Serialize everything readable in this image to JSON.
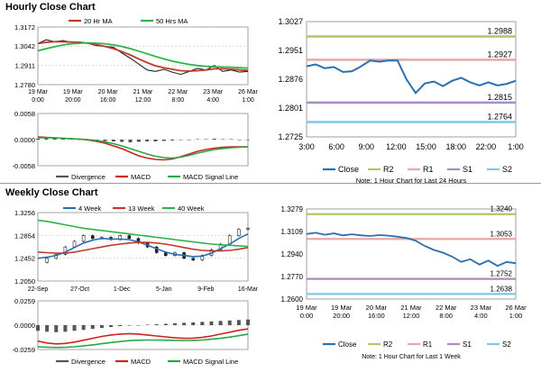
{
  "sections": {
    "hourly_title": "Hourly Close Chart",
    "weekly_title": "Weekly Close Chart"
  },
  "colors": {
    "ma_short": "#c0392b",
    "ma_long": "#2db34a",
    "price": "#222222",
    "close": "#2a6fb0",
    "r2": "#a9c96a",
    "r1": "#e8a7a7",
    "s1": "#a98cc7",
    "s2": "#7fc7e6",
    "macd": "#cc2222",
    "signal": "#22aa44",
    "divergence": "#555555",
    "grid": "#bbbbbb"
  },
  "legends": {
    "hourly_ma": [
      "20 Hr MA",
      "50 Hrs MA"
    ],
    "weekly_ma": [
      "4 Week",
      "13 Week",
      "40 Week"
    ],
    "macd": [
      "Divergence",
      "MACD",
      "MACD Signal Line"
    ],
    "macd_weekly": [
      "Divergence",
      "MACD",
      "MACD Signal Line"
    ],
    "levels": [
      "Close",
      "R2",
      "R1",
      "S1",
      "S2"
    ]
  },
  "notes": {
    "hourly": "Note: 1 Hour Chart for Last 24 Hours",
    "weekly": "Note: 1 Hour Chart for Last 1 Week"
  },
  "chart_data": [
    {
      "id": "hourly_price",
      "type": "line",
      "title": "Hourly Close Chart",
      "yticks": [
        "1.3172",
        "1.3042",
        "1.2911",
        "1.2780"
      ],
      "ylim": [
        1.278,
        1.3172
      ],
      "xticks": [
        [
          "19 Mar",
          "0:00"
        ],
        [
          "19 Mar",
          "20:00"
        ],
        [
          "20 Mar",
          "16:00"
        ],
        [
          "21 Mar",
          "12:00"
        ],
        [
          "22 Mar",
          "8:00"
        ],
        [
          "23 Mar",
          "4:00"
        ],
        [
          "26 Mar",
          "1:00"
        ]
      ],
      "series": [
        {
          "name": "Price",
          "values": [
            1.306,
            1.3085,
            1.3072,
            1.308,
            1.3068,
            1.307,
            1.306,
            1.3045,
            1.304,
            1.3035,
            1.2995,
            1.296,
            1.292,
            1.288,
            1.287,
            1.2885,
            1.2865,
            1.285,
            1.287,
            1.289,
            1.288,
            1.291,
            1.287,
            1.288,
            1.2865,
            1.287
          ]
        },
        {
          "name": "20 Hr MA",
          "values": [
            1.306,
            1.3068,
            1.3072,
            1.3072,
            1.307,
            1.3068,
            1.3062,
            1.3052,
            1.304,
            1.3025,
            1.3005,
            1.2982,
            1.2955,
            1.293,
            1.2908,
            1.2895,
            1.2885,
            1.2875,
            1.2872,
            1.2875,
            1.288,
            1.2888,
            1.2888,
            1.2885,
            1.288,
            1.2877
          ]
        },
        {
          "name": "50 Hrs MA",
          "values": [
            1.301,
            1.3025,
            1.3038,
            1.305,
            1.3058,
            1.3062,
            1.3064,
            1.3062,
            1.3058,
            1.305,
            1.304,
            1.3025,
            1.3008,
            1.299,
            1.2972,
            1.2955,
            1.294,
            1.2928,
            1.2918,
            1.291,
            1.2905,
            1.2902,
            1.29,
            1.2898,
            1.2895,
            1.2893
          ]
        }
      ]
    },
    {
      "id": "hourly_macd",
      "type": "line",
      "yticks": [
        "0.0058",
        "0.0000",
        "-0.0058"
      ],
      "ylim": [
        -0.0058,
        0.0058
      ],
      "series": [
        {
          "name": "Divergence",
          "values": [
            0.0002,
            0.0003,
            0.0003,
            0.0002,
            0.0001,
            0.0,
            -0.0001,
            -0.0002,
            -0.0003,
            -0.0004,
            -0.0005,
            -0.0006,
            -0.0005,
            -0.0004,
            -0.0004,
            -0.0003,
            -0.0002,
            -0.0001,
            0.0,
            0.0001,
            0.0001,
            0.0002,
            0.0001,
            0.0001,
            0.0,
            0.0
          ]
        },
        {
          "name": "MACD",
          "values": [
            0.0006,
            0.0005,
            0.0004,
            0.0003,
            0.0002,
            0.0001,
            -0.0001,
            -0.0004,
            -0.0008,
            -0.0014,
            -0.002,
            -0.0028,
            -0.0036,
            -0.0041,
            -0.0044,
            -0.0045,
            -0.0043,
            -0.0038,
            -0.0032,
            -0.0026,
            -0.0022,
            -0.0019,
            -0.0017,
            -0.0016,
            -0.0016,
            -0.0016
          ]
        },
        {
          "name": "MACD Signal Line",
          "values": [
            0.0004,
            0.0004,
            0.0004,
            0.0003,
            0.0002,
            0.0001,
            0.0,
            -0.0002,
            -0.0005,
            -0.0009,
            -0.0014,
            -0.002,
            -0.0026,
            -0.0032,
            -0.0037,
            -0.004,
            -0.0041,
            -0.0039,
            -0.0035,
            -0.003,
            -0.0026,
            -0.0022,
            -0.002,
            -0.0018,
            -0.0017,
            -0.0016
          ]
        }
      ]
    },
    {
      "id": "hourly_levels",
      "type": "line",
      "yticks": [
        "1.3027",
        "1.2951",
        "1.2876",
        "1.2801",
        "1.2725"
      ],
      "ylim": [
        1.2725,
        1.3027
      ],
      "xticks": [
        "3:00",
        "6:00",
        "9:00",
        "12:00",
        "15:00",
        "18:00",
        "22:00",
        "1:00"
      ],
      "levels": [
        {
          "name": "R2",
          "value": 1.2988
        },
        {
          "name": "R1",
          "value": 1.2927
        },
        {
          "name": "S1",
          "value": 1.2815
        },
        {
          "name": "S2",
          "value": 1.2764
        }
      ],
      "series": [
        {
          "name": "Close",
          "values": [
            1.291,
            1.2915,
            1.2905,
            1.2908,
            1.2895,
            1.2897,
            1.291,
            1.2925,
            1.2922,
            1.2925,
            1.2925,
            1.2875,
            1.284,
            1.2865,
            1.287,
            1.2858,
            1.2872,
            1.288,
            1.2868,
            1.286,
            1.2868,
            1.286,
            1.2864,
            1.2872
          ]
        }
      ]
    },
    {
      "id": "weekly_price",
      "type": "line",
      "title": "Weekly Close Chart",
      "yticks": [
        "1.3256",
        "1.2854",
        "1.2452",
        "1.2050"
      ],
      "ylim": [
        1.205,
        1.3256
      ],
      "xticks": [
        "22-Sep",
        "27-Oct",
        "1-Dec",
        "5-Jan",
        "9-Feb",
        "16-Mar"
      ],
      "series": [
        {
          "name": "Price",
          "values": [
            1.238,
            1.245,
            1.252,
            1.265,
            1.275,
            1.285,
            1.28,
            1.282,
            1.278,
            1.285,
            1.28,
            1.272,
            1.265,
            1.255,
            1.25,
            1.255,
            1.245,
            1.242,
            1.25,
            1.26,
            1.27,
            1.285,
            1.296,
            1.298
          ]
        },
        {
          "name": "4 Week",
          "values": [
            1.245,
            1.247,
            1.25,
            1.256,
            1.264,
            1.272,
            1.277,
            1.28,
            1.279,
            1.279,
            1.278,
            1.274,
            1.268,
            1.262,
            1.256,
            1.252,
            1.25,
            1.248,
            1.249,
            1.254,
            1.262,
            1.27,
            1.28,
            1.288
          ]
        },
        {
          "name": "13 Week",
          "values": [
            1.256,
            1.255,
            1.254,
            1.254,
            1.256,
            1.259,
            1.262,
            1.265,
            1.268,
            1.27,
            1.272,
            1.273,
            1.273,
            1.272,
            1.27,
            1.267,
            1.264,
            1.261,
            1.259,
            1.258,
            1.258,
            1.259,
            1.261,
            1.264
          ]
        },
        {
          "name": "40 Week",
          "values": [
            1.312,
            1.31,
            1.307,
            1.304,
            1.301,
            1.298,
            1.296,
            1.294,
            1.292,
            1.29,
            1.288,
            1.286,
            1.284,
            1.282,
            1.28,
            1.278,
            1.276,
            1.274,
            1.272,
            1.27,
            1.269,
            1.268,
            1.267,
            1.266
          ]
        }
      ]
    },
    {
      "id": "weekly_macd",
      "type": "line",
      "yticks": [
        "0.0259",
        "0.0000",
        "-0.0259"
      ],
      "ylim": [
        -0.0259,
        0.0259
      ],
      "series": [
        {
          "name": "Divergence",
          "values": [
            -0.006,
            -0.007,
            -0.0075,
            -0.007,
            -0.006,
            -0.005,
            -0.004,
            -0.003,
            -0.002,
            -0.001,
            -0.0005,
            0.0,
            0.0005,
            0.001,
            0.0015,
            0.002,
            0.0025,
            0.003,
            0.0035,
            0.004,
            0.0045,
            0.005,
            0.0055,
            0.006
          ]
        },
        {
          "name": "MACD",
          "values": [
            -0.017,
            -0.019,
            -0.02,
            -0.0195,
            -0.018,
            -0.016,
            -0.014,
            -0.012,
            -0.0105,
            -0.0095,
            -0.009,
            -0.0095,
            -0.0105,
            -0.0115,
            -0.0125,
            -0.0135,
            -0.014,
            -0.0138,
            -0.013,
            -0.0115,
            -0.0095,
            -0.0075,
            -0.0055,
            -0.004
          ]
        },
        {
          "name": "MACD Signal Line",
          "values": [
            -0.023,
            -0.0235,
            -0.0238,
            -0.0236,
            -0.023,
            -0.022,
            -0.021,
            -0.0198,
            -0.0185,
            -0.0175,
            -0.0165,
            -0.016,
            -0.0158,
            -0.0158,
            -0.016,
            -0.0162,
            -0.0163,
            -0.0162,
            -0.0158,
            -0.015,
            -0.014,
            -0.0128,
            -0.0112,
            -0.0095
          ]
        }
      ]
    },
    {
      "id": "weekly_levels",
      "type": "line",
      "yticks": [
        "1.3279",
        "1.3109",
        "1.2940",
        "1.2770",
        "1.2600"
      ],
      "ylim": [
        1.26,
        1.3279
      ],
      "xticks": [
        [
          "19 Mar",
          "0:00"
        ],
        [
          "19 Mar",
          "20:00"
        ],
        [
          "20 Mar",
          "16:00"
        ],
        [
          "21 Mar",
          "12:00"
        ],
        [
          "22 Mar",
          "8:00"
        ],
        [
          "23 Mar",
          "4:00"
        ],
        [
          "26 Mar",
          "1:00"
        ]
      ],
      "levels": [
        {
          "name": "R2",
          "value": 1.324
        },
        {
          "name": "R1",
          "value": 1.3053
        },
        {
          "name": "S1",
          "value": 1.2752
        },
        {
          "name": "S2",
          "value": 1.2638
        }
      ],
      "series": [
        {
          "name": "Close",
          "values": [
            1.309,
            1.31,
            1.3085,
            1.3095,
            1.308,
            1.3088,
            1.308,
            1.3075,
            1.3082,
            1.3078,
            1.307,
            1.306,
            1.304,
            1.3,
            1.297,
            1.295,
            1.292,
            1.288,
            1.29,
            1.286,
            1.289,
            1.285,
            1.288,
            1.287
          ]
        }
      ]
    }
  ]
}
